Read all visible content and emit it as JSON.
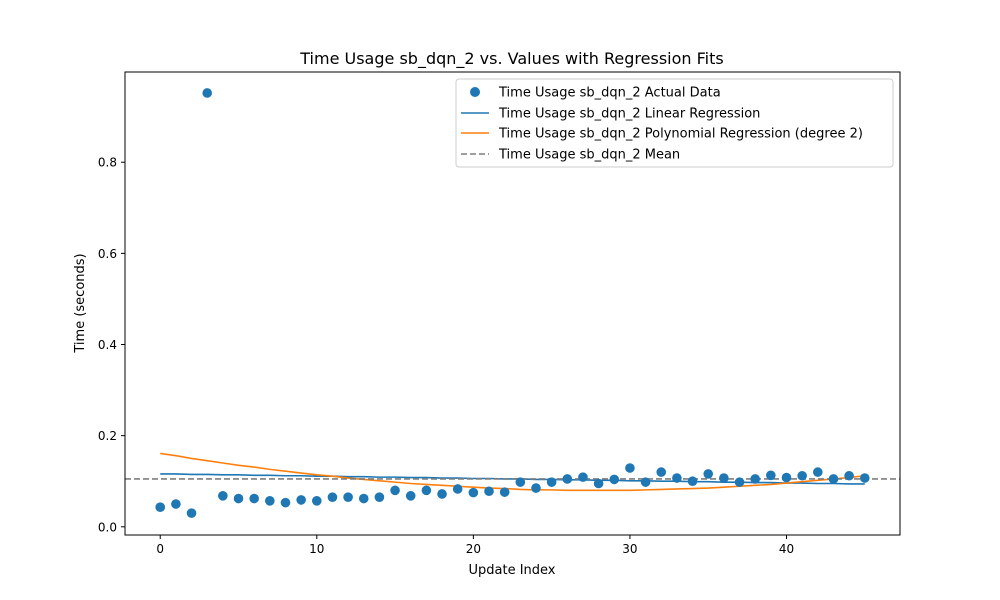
{
  "chart_data": {
    "type": "scatter",
    "title": "Time Usage sb_dqn_2 vs. Values with Regression Fits",
    "xlabel": "Update Index",
    "ylabel": "Time (seconds)",
    "xlim": [
      -2.25,
      47.25
    ],
    "ylim": [
      -0.018,
      0.998
    ],
    "x_ticks": [
      0,
      10,
      20,
      30,
      40
    ],
    "y_ticks": [
      0.0,
      0.2,
      0.4,
      0.6,
      0.8
    ],
    "x_tick_labels": [
      "0",
      "10",
      "20",
      "30",
      "40"
    ],
    "y_tick_labels": [
      "0.0",
      "0.2",
      "0.4",
      "0.6",
      "0.8"
    ],
    "grid": false,
    "legend_position": "top-right",
    "x": [
      0,
      1,
      2,
      3,
      4,
      5,
      6,
      7,
      8,
      9,
      10,
      11,
      12,
      13,
      14,
      15,
      16,
      17,
      18,
      19,
      20,
      21,
      22,
      23,
      24,
      25,
      26,
      27,
      28,
      29,
      30,
      31,
      32,
      33,
      34,
      35,
      36,
      37,
      38,
      39,
      40,
      41,
      42,
      43,
      44,
      45
    ],
    "series": [
      {
        "name": "Time Usage sb_dqn_2 Actual Data",
        "kind": "scatter",
        "color": "#1f77b4",
        "values": [
          0.043,
          0.05,
          0.03,
          0.952,
          0.068,
          0.062,
          0.062,
          0.057,
          0.053,
          0.059,
          0.057,
          0.065,
          0.065,
          0.062,
          0.065,
          0.08,
          0.068,
          0.08,
          0.072,
          0.083,
          0.075,
          0.078,
          0.076,
          0.098,
          0.085,
          0.098,
          0.105,
          0.109,
          0.095,
          0.104,
          0.129,
          0.098,
          0.12,
          0.107,
          0.1,
          0.116,
          0.107,
          0.098,
          0.105,
          0.113,
          0.108,
          0.112,
          0.12,
          0.105,
          0.112,
          0.107
        ]
      },
      {
        "name": "Time Usage sb_dqn_2 Linear Regression",
        "kind": "line",
        "color": "#1f77b4",
        "values": [
          0.116,
          0.116,
          0.115,
          0.115,
          0.114,
          0.114,
          0.113,
          0.113,
          0.112,
          0.112,
          0.111,
          0.111,
          0.11,
          0.11,
          0.109,
          0.109,
          0.108,
          0.108,
          0.107,
          0.107,
          0.106,
          0.106,
          0.105,
          0.105,
          0.104,
          0.104,
          0.103,
          0.103,
          0.102,
          0.102,
          0.101,
          0.101,
          0.1,
          0.1,
          0.099,
          0.099,
          0.098,
          0.098,
          0.097,
          0.097,
          0.096,
          0.096,
          0.095,
          0.095,
          0.094,
          0.094
        ]
      },
      {
        "name": "Time Usage sb_dqn_2 Polynomial Regression (degree 2)",
        "kind": "line",
        "color": "#ff7f0e",
        "values": [
          0.161,
          0.156,
          0.15,
          0.145,
          0.14,
          0.135,
          0.131,
          0.126,
          0.122,
          0.118,
          0.114,
          0.111,
          0.107,
          0.104,
          0.101,
          0.098,
          0.095,
          0.093,
          0.091,
          0.089,
          0.087,
          0.085,
          0.084,
          0.082,
          0.081,
          0.081,
          0.08,
          0.08,
          0.08,
          0.08,
          0.08,
          0.081,
          0.082,
          0.083,
          0.084,
          0.085,
          0.087,
          0.089,
          0.091,
          0.093,
          0.096,
          0.099,
          0.102,
          0.105,
          0.108,
          0.112
        ]
      },
      {
        "name": "Time Usage sb_dqn_2 Mean",
        "kind": "hline",
        "color": "#7f7f7f",
        "value": 0.105
      }
    ]
  }
}
